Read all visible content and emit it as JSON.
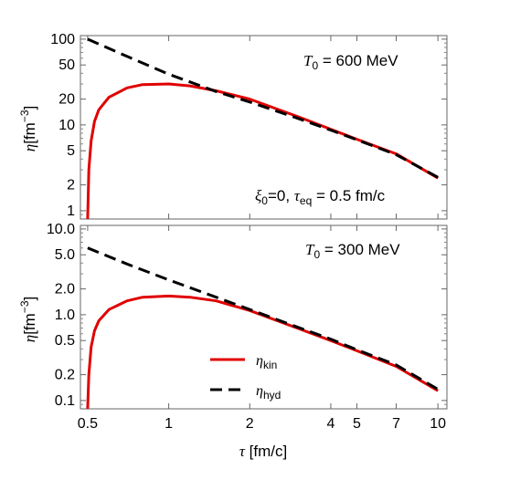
{
  "chart_data": [
    {
      "type": "line",
      "panel": "top",
      "annotation_T0": {
        "symbol": "T",
        "sub": "0",
        "text": " = 600 MeV"
      },
      "annotation_params": {
        "xi": "ξ",
        "xi_sub": "0",
        "xi_val": "=0, ",
        "tau": "τ",
        "tau_sub": "eq",
        "tau_val": " = 0.5 fm/c"
      },
      "ylabel": {
        "sym": "η",
        "text": "[fm",
        "sup": "−3",
        "close": "]"
      },
      "yscale": "log",
      "xscale": "log",
      "ylim": [
        0.8,
        110
      ],
      "xlim": [
        0.47,
        10.8
      ],
      "yticks": [
        1,
        2,
        5,
        10,
        20,
        50,
        100
      ],
      "yticklabels": [
        "1",
        "2",
        "5",
        "10",
        "20",
        "50",
        "100"
      ],
      "series": [
        {
          "key": "kin",
          "color": "#e00000",
          "dash": false,
          "x": [
            0.5,
            0.505,
            0.515,
            0.53,
            0.55,
            0.6,
            0.7,
            0.8,
            1.0,
            1.2,
            1.5,
            2.0,
            3.0,
            4.0,
            5.0,
            7.0,
            10.0
          ],
          "y": [
            0.8,
            3.0,
            6.5,
            11.0,
            15.0,
            21.0,
            27.0,
            29.5,
            30.0,
            28.5,
            25.0,
            20.0,
            12.6,
            8.9,
            6.8,
            4.6,
            2.4
          ]
        },
        {
          "key": "hyd",
          "color": "#000000",
          "dash": true,
          "x": [
            0.5,
            0.7,
            1.0,
            1.5,
            2.0,
            3.0,
            4.0,
            5.0,
            7.0,
            10.0
          ],
          "y": [
            100,
            63,
            39,
            24.5,
            18.5,
            12.0,
            8.7,
            6.7,
            4.5,
            2.45
          ]
        }
      ]
    },
    {
      "type": "line",
      "panel": "bottom",
      "annotation_T0": {
        "symbol": "T",
        "sub": "0",
        "text": " = 300 MeV"
      },
      "ylabel": {
        "sym": "η",
        "text": "[fm",
        "sup": "−3",
        "close": "]"
      },
      "yscale": "log",
      "xscale": "log",
      "ylim": [
        0.08,
        11
      ],
      "xlim": [
        0.47,
        10.8
      ],
      "yticks": [
        0.1,
        0.2,
        0.5,
        1.0,
        2.0,
        5.0,
        10.0
      ],
      "yticklabels": [
        "0.1",
        "0.2",
        "0.5",
        "1.0",
        "2.0",
        "5.0",
        "10.0"
      ],
      "xticks": [
        0.5,
        1,
        2,
        4,
        5,
        7,
        10
      ],
      "xticklabels": [
        "0.5",
        "1",
        "2",
        "4",
        "5",
        "7",
        "10"
      ],
      "xlabel": {
        "sym": "τ",
        "text": " [fm/c]"
      },
      "legend": [
        {
          "sym": "η",
          "sub": "kin",
          "color": "#e00000",
          "dash": false
        },
        {
          "sym": "η",
          "sub": "hyd",
          "color": "#000000",
          "dash": true
        }
      ],
      "series": [
        {
          "key": "kin",
          "color": "#e00000",
          "dash": false,
          "x": [
            0.5,
            0.505,
            0.515,
            0.53,
            0.55,
            0.6,
            0.7,
            0.8,
            1.0,
            1.2,
            1.5,
            2.0,
            3.0,
            4.0,
            5.0,
            7.0,
            10.0
          ],
          "y": [
            0.08,
            0.2,
            0.42,
            0.65,
            0.85,
            1.15,
            1.45,
            1.6,
            1.65,
            1.6,
            1.45,
            1.12,
            0.7,
            0.5,
            0.38,
            0.25,
            0.13
          ]
        },
        {
          "key": "hyd",
          "color": "#000000",
          "dash": true,
          "x": [
            0.5,
            0.7,
            1.0,
            1.5,
            2.0,
            3.0,
            4.0,
            5.0,
            7.0,
            10.0
          ],
          "y": [
            6.0,
            3.9,
            2.55,
            1.6,
            1.15,
            0.72,
            0.52,
            0.39,
            0.26,
            0.135
          ]
        }
      ]
    }
  ]
}
